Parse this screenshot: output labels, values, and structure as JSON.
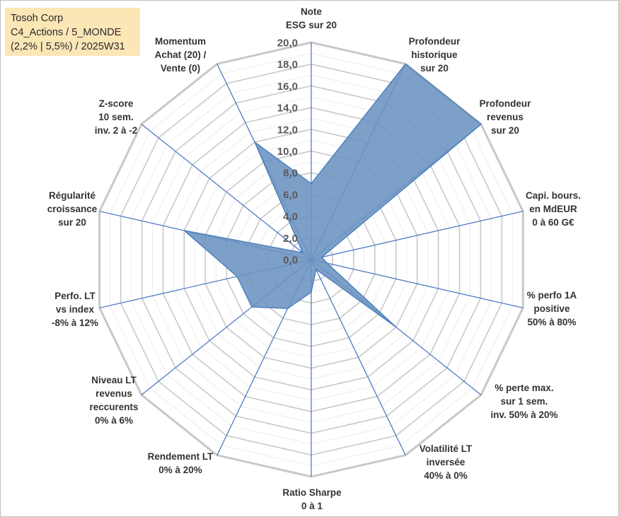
{
  "header": {
    "lines": [
      "Tosoh Corp",
      "C4_Actions / 5_MONDE",
      "(2,2% | 5,5%) / 2025W31"
    ]
  },
  "chart_data": {
    "type": "radar",
    "rmin": 0,
    "rmax": 20,
    "ticks": [
      "0,0",
      "2,0",
      "4,0",
      "6,0",
      "8,0",
      "10,0",
      "12,0",
      "14,0",
      "16,0",
      "18,0",
      "20,0"
    ],
    "axes": [
      {
        "label": [
          "Note",
          "ESG sur 20"
        ],
        "value": 7.0
      },
      {
        "label": [
          "Profondeur",
          "historique",
          "sur 20"
        ],
        "value": 20.0
      },
      {
        "label": [
          "Profondeur",
          "revenus",
          "sur 20"
        ],
        "value": 20.0
      },
      {
        "label": [
          "Capi. bours.",
          "en MdEUR",
          "0 à 60 G€"
        ],
        "value": 1.0
      },
      {
        "label": [
          "% perfo 1A",
          "positive",
          "50% à 80%"
        ],
        "value": 1.5
      },
      {
        "label": [
          "% perte max.",
          "sur 1 sem.",
          "inv. 50% à 20%"
        ],
        "value": 10.0
      },
      {
        "label": [
          "Volatilité LT",
          "inversée",
          "40% à 0%"
        ],
        "value": 1.0
      },
      {
        "label": [
          "Ratio Sharpe",
          "0 à 1"
        ],
        "value": 3.0
      },
      {
        "label": [
          "Rendement LT",
          "0% à 20%"
        ],
        "value": 5.0
      },
      {
        "label": [
          "Niveau LT",
          "revenus",
          "reccurents",
          "0% à 6%"
        ],
        "value": 7.0
      },
      {
        "label": [
          "Perfo. LT",
          "vs index",
          "-8% à 12%"
        ],
        "value": 7.0
      },
      {
        "label": [
          "Régularité",
          "croissance",
          "sur 20"
        ],
        "value": 12.0
      },
      {
        "label": [
          "Z-score",
          "10 sem.",
          "inv. 2 à -2"
        ],
        "value": 1.0
      },
      {
        "label": [
          "Momentum",
          "Achat (20) /",
          "Vente (0)"
        ],
        "value": 12.0
      }
    ],
    "series_color": "#4f81bd",
    "fill_color": "#6b93c2"
  }
}
